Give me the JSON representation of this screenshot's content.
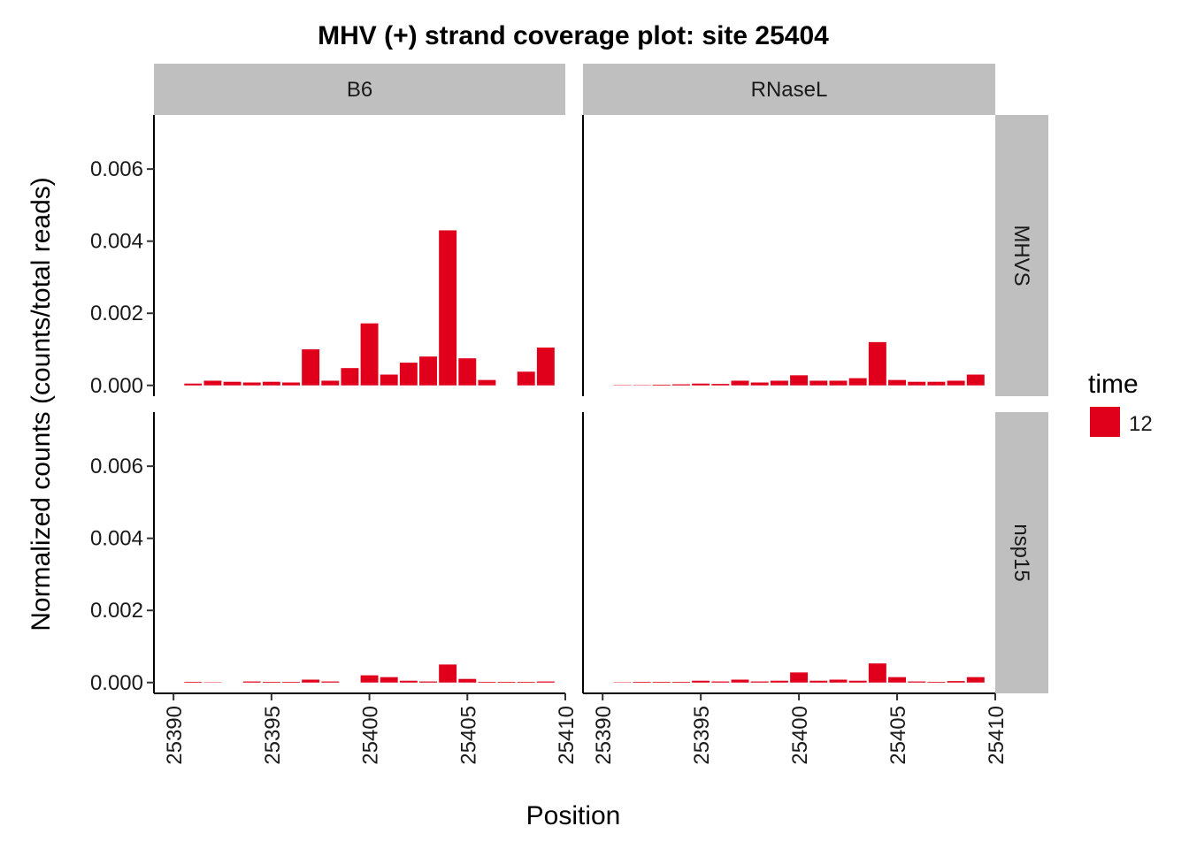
{
  "chart_data": {
    "type": "bar",
    "title": "MHV (+) strand coverage plot: site 25404",
    "xlabel": "Position",
    "ylabel": "Normalized counts (counts/total reads)",
    "xlim": [
      25389,
      25410
    ],
    "ylim": [
      -0.0003,
      0.0075
    ],
    "x_ticks": [
      25390,
      25395,
      25400,
      25405,
      25410
    ],
    "y_ticks": [
      0,
      0.002,
      0.004,
      0.006
    ],
    "y_tick_labels": [
      "0.000",
      "0.002",
      "0.004",
      "0.006"
    ],
    "x_tick_labels": [
      "25390",
      "25395",
      "25400",
      "25405",
      "25410"
    ],
    "columns": [
      "B6",
      "RNaseL"
    ],
    "rows": [
      "MHVS",
      "nsp15"
    ],
    "bar_color": "#e0001b",
    "strip_color": "#bfbfbf",
    "legend": {
      "title": "time",
      "label": "12",
      "position": "right"
    },
    "positions": [
      25391,
      25392,
      25393,
      25394,
      25395,
      25396,
      25397,
      25398,
      25399,
      25400,
      25401,
      25402,
      25403,
      25404,
      25405,
      25406,
      25407,
      25408,
      25409
    ],
    "panels": [
      {
        "col": "B6",
        "row": "MHVS",
        "values": [
          5e-05,
          0.00013,
          0.0001,
          8e-05,
          0.0001,
          8e-05,
          0.001,
          0.00013,
          0.00048,
          0.00172,
          0.0003,
          0.00063,
          0.0008,
          0.0043,
          0.00075,
          0.00015,
          0,
          0.00038,
          0.00105
        ]
      },
      {
        "col": "RNaseL",
        "row": "MHVS",
        "values": [
          1e-05,
          1e-05,
          2e-05,
          3e-05,
          5e-05,
          4e-05,
          0.00013,
          8e-05,
          0.00013,
          0.00028,
          0.00013,
          0.00013,
          0.0002,
          0.0012,
          0.00015,
          0.0001,
          0.0001,
          0.00013,
          0.0003
        ]
      },
      {
        "col": "B6",
        "row": "nsp15",
        "values": [
          2e-05,
          1e-05,
          0,
          3e-05,
          2e-05,
          2e-05,
          8e-05,
          3e-05,
          0,
          0.0002,
          0.00015,
          5e-05,
          3e-05,
          0.0005,
          0.0001,
          2e-05,
          2e-05,
          2e-05,
          3e-05
        ]
      },
      {
        "col": "RNaseL",
        "row": "nsp15",
        "values": [
          1e-05,
          2e-05,
          2e-05,
          2e-05,
          5e-05,
          3e-05,
          8e-05,
          3e-05,
          5e-05,
          0.00028,
          5e-05,
          8e-05,
          5e-05,
          0.00053,
          0.00015,
          3e-05,
          2e-05,
          4e-05,
          0.00015
        ]
      }
    ]
  }
}
